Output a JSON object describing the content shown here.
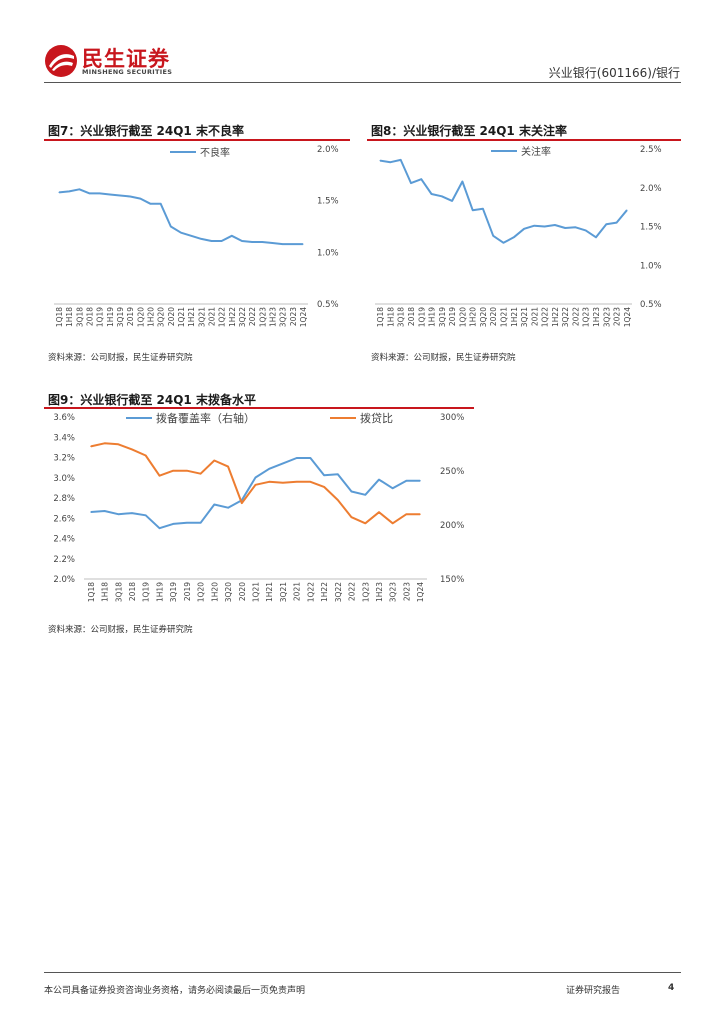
{
  "header": {
    "logo_cn": "民生证券",
    "logo_en": "MINSHENG SECURITIES",
    "report_title": "兴业银行(601166)/银行"
  },
  "colors": {
    "brand_red": "#c8161d",
    "series_blue": "#5b9bd5",
    "series_orange": "#ed7d31"
  },
  "figures": [
    {
      "title": "图7：兴业银行截至 24Q1 末不良率",
      "source": "资料来源：公司财报，民生证券研究院"
    },
    {
      "title": "图8：兴业银行截至 24Q1 末关注率",
      "source": "资料来源：公司财报，民生证券研究院"
    },
    {
      "title": "图9：兴业银行截至 24Q1 末拨备水平",
      "source": "资料来源：公司财报，民生证券研究院"
    }
  ],
  "chart_data": [
    {
      "type": "line",
      "title": "图7：兴业银行截至 24Q1 末不良率",
      "categories": [
        "1Q18",
        "1H18",
        "3Q18",
        "2018",
        "1Q19",
        "1H19",
        "3Q19",
        "2019",
        "1Q20",
        "1H20",
        "3Q20",
        "2020",
        "1Q21",
        "1H21",
        "3Q21",
        "2021",
        "1Q22",
        "1H22",
        "3Q22",
        "2022",
        "1Q23",
        "1H23",
        "3Q23",
        "2023",
        "1Q24"
      ],
      "series": [
        {
          "name": "不良率",
          "values": [
            1.58,
            1.59,
            1.61,
            1.57,
            1.57,
            1.56,
            1.55,
            1.54,
            1.52,
            1.47,
            1.47,
            1.25,
            1.19,
            1.16,
            1.13,
            1.11,
            1.11,
            1.16,
            1.11,
            1.1,
            1.1,
            1.09,
            1.08,
            1.08,
            1.08
          ]
        }
      ],
      "ylim": [
        0.5,
        2.0
      ],
      "yticks": [
        "0.5%",
        "1.0%",
        "1.5%",
        "2.0%"
      ],
      "y_axis_side": "right",
      "legend": "top"
    },
    {
      "type": "line",
      "title": "图8：兴业银行截至 24Q1 末关注率",
      "categories": [
        "1Q18",
        "1H18",
        "3Q18",
        "2018",
        "1Q19",
        "1H19",
        "3Q19",
        "2019",
        "1Q20",
        "1H20",
        "3Q20",
        "2020",
        "1Q21",
        "1H21",
        "3Q21",
        "2021",
        "1Q22",
        "1H22",
        "3Q22",
        "2022",
        "1Q23",
        "1H23",
        "3Q23",
        "2023",
        "1Q24"
      ],
      "series": [
        {
          "name": "关注率",
          "values": [
            2.35,
            2.33,
            2.36,
            2.06,
            2.11,
            1.92,
            1.89,
            1.83,
            2.08,
            1.71,
            1.73,
            1.38,
            1.29,
            1.36,
            1.47,
            1.51,
            1.5,
            1.52,
            1.48,
            1.49,
            1.45,
            1.36,
            1.53,
            1.55,
            1.71
          ]
        }
      ],
      "ylim": [
        0.5,
        2.5
      ],
      "yticks": [
        "0.5%",
        "1.0%",
        "1.5%",
        "2.0%",
        "2.5%"
      ],
      "y_axis_side": "right",
      "legend": "top"
    },
    {
      "type": "line",
      "title": "图9：兴业银行截至 24Q1 末拨备水平",
      "categories": [
        "1Q18",
        "1H18",
        "3Q18",
        "2018",
        "1Q19",
        "1H19",
        "3Q19",
        "2019",
        "1Q20",
        "1H20",
        "3Q20",
        "2020",
        "1Q21",
        "1H21",
        "3Q21",
        "2021",
        "1Q22",
        "1H22",
        "3Q22",
        "2022",
        "1Q23",
        "1H23",
        "3Q23",
        "2023",
        "1Q24"
      ],
      "series": [
        {
          "name": "拨备覆盖率（右轴）",
          "axis": "right",
          "values": [
            212,
            213,
            210,
            211,
            209,
            197,
            201,
            202,
            202,
            219,
            216,
            223,
            244,
            252,
            257,
            262,
            262,
            246,
            247,
            231,
            228,
            242,
            234,
            241,
            241
          ]
        },
        {
          "name": "拨贷比",
          "axis": "left",
          "values": [
            3.31,
            3.34,
            3.33,
            3.28,
            3.22,
            3.02,
            3.07,
            3.07,
            3.04,
            3.17,
            3.11,
            2.75,
            2.93,
            2.96,
            2.95,
            2.96,
            2.96,
            2.91,
            2.78,
            2.61,
            2.55,
            2.66,
            2.55,
            2.64,
            2.64
          ]
        }
      ],
      "ylim_left": [
        2.0,
        3.6
      ],
      "yticks_left": [
        "2.0%",
        "2.2%",
        "2.4%",
        "2.6%",
        "2.8%",
        "3.0%",
        "3.2%",
        "3.4%",
        "3.6%"
      ],
      "ylim_right": [
        150,
        300
      ],
      "yticks_right": [
        "150%",
        "200%",
        "250%",
        "300%"
      ],
      "legend": "top"
    }
  ],
  "footer": {
    "disclaimer": "本公司具备证券投资咨询业务资格，请务必阅读最后一页免责声明",
    "doc_type": "证券研究报告",
    "page_number": "4"
  }
}
